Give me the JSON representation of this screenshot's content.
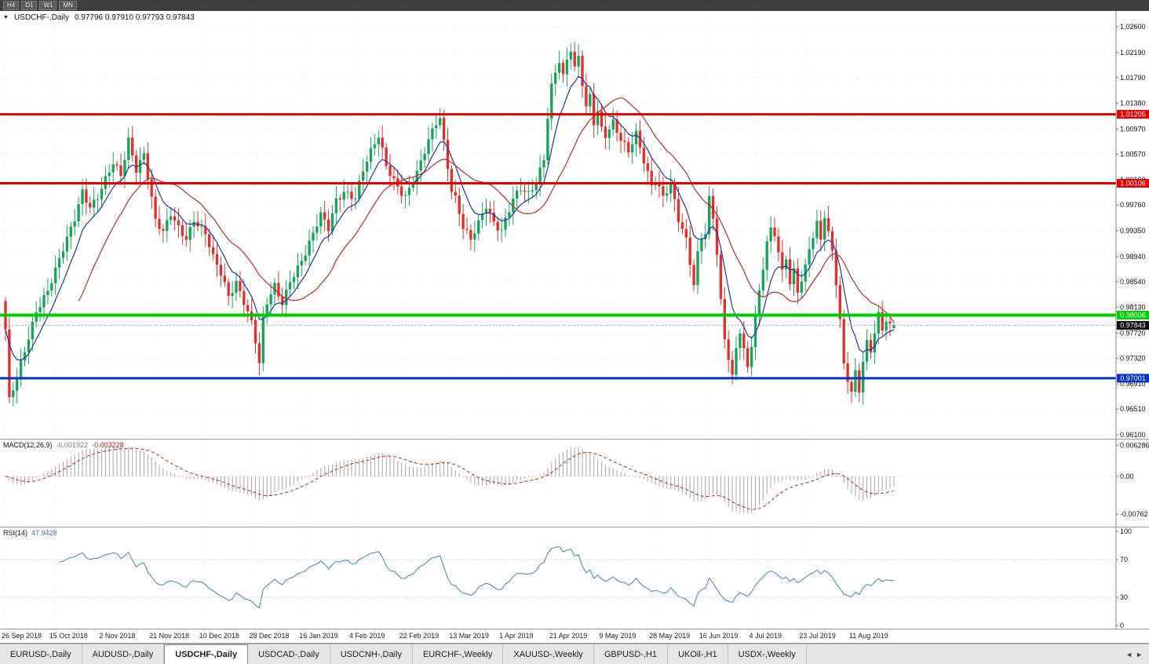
{
  "toolbar": {
    "timeframes": [
      "H4",
      "D1",
      "W1",
      "MN"
    ]
  },
  "chart": {
    "symbol_label": "USDCHF-,Daily",
    "ohlc_text": "0.97796 0.97910 0.97793 0.97843"
  },
  "macd": {
    "name": "MACD(12,26,9)",
    "value_main": "-0.001922",
    "value_signal": "-0.003228",
    "axis_labels": [
      "0.006286",
      "0.00",
      "-0.00762"
    ],
    "axis_values": [
      0.006286,
      0,
      -0.00762
    ]
  },
  "rsi": {
    "name": "RSI(14)",
    "value": "47.9428",
    "axis_labels": [
      "100",
      "70",
      "30",
      "0"
    ],
    "axis_values": [
      100,
      70,
      30,
      0
    ],
    "levels": [
      70,
      30
    ]
  },
  "colors": {
    "up": "#1aa35c",
    "down": "#dd3330",
    "ma_fast": "#23369e",
    "ma_slow": "#b1312f",
    "macd_hist": "#a6a6a6",
    "macd_signal": "#b22222",
    "rsi_line": "#4a7ebb",
    "grid": "#ebebeb",
    "axis": "#808080"
  },
  "chart_data": {
    "type": "candlestick",
    "title": "USDCHF-,Daily",
    "symbol": "USDCHF",
    "timeframe": "Daily",
    "ylim": [
      0.961,
      1.026
    ],
    "price_axis_ticks": [
      1.026,
      1.0219,
      1.0179,
      1.0138,
      1.0097,
      1.0057,
      1.0016,
      0.9976,
      0.9935,
      0.9894,
      0.9854,
      0.9813,
      0.9772,
      0.9732,
      0.9691,
      0.9651,
      0.961
    ],
    "x_tick_labels": [
      "26 Sep 2018",
      "15 Oct 2018",
      "2 Nov 2018",
      "21 Nov 2018",
      "10 Dec 2018",
      "28 Dec 2018",
      "16 Jan 2019",
      "4 Feb 2019",
      "22 Feb 2019",
      "13 Mar 2019",
      "1 Apr 2019",
      "21 Apr 2019",
      "9 May 2019",
      "28 May 2019",
      "16 Jun 2019",
      "4 Jul 2019",
      "23 Jul 2019",
      "11 Aug 2019"
    ],
    "candles_per_tick": 13,
    "candle_count": 232,
    "current_price": 0.97843,
    "current_price_label": "0.97843",
    "last_candle": {
      "open": 0.97796,
      "high": 0.9791,
      "low": 0.97793,
      "close": 0.97843
    },
    "price_waypoints": [
      [
        0,
        0.9775
      ],
      [
        1,
        0.9662
      ],
      [
        3,
        0.97
      ],
      [
        5,
        0.9745
      ],
      [
        8,
        0.981
      ],
      [
        11,
        0.984
      ],
      [
        13,
        0.987
      ],
      [
        16,
        0.992
      ],
      [
        18,
        0.9955
      ],
      [
        20,
        1.0
      ],
      [
        22,
        0.9975
      ],
      [
        24,
        0.999
      ],
      [
        26,
        1.0015
      ],
      [
        28,
        1.004
      ],
      [
        30,
        1.0022
      ],
      [
        32,
        1.008
      ],
      [
        34,
        1.0035
      ],
      [
        36,
        1.006
      ],
      [
        39,
        0.995
      ],
      [
        41,
        0.993
      ],
      [
        43,
        0.996
      ],
      [
        45,
        0.994
      ],
      [
        47,
        0.9925
      ],
      [
        49,
        0.9955
      ],
      [
        52,
        0.993
      ],
      [
        54,
        0.989
      ],
      [
        56,
        0.9865
      ],
      [
        58,
        0.983
      ],
      [
        60,
        0.9855
      ],
      [
        62,
        0.9825
      ],
      [
        64,
        0.979
      ],
      [
        65,
        0.976
      ],
      [
        66,
        0.9722
      ],
      [
        67,
        0.979
      ],
      [
        68,
        0.9818
      ],
      [
        70,
        0.9845
      ],
      [
        72,
        0.982
      ],
      [
        74,
        0.9858
      ],
      [
        76,
        0.9878
      ],
      [
        78,
        0.99
      ],
      [
        80,
        0.9928
      ],
      [
        82,
        0.9958
      ],
      [
        84,
        0.9938
      ],
      [
        86,
        0.9985
      ],
      [
        88,
        1.0
      ],
      [
        91,
        0.9988
      ],
      [
        93,
        1.003
      ],
      [
        95,
        1.0058
      ],
      [
        97,
        1.0085
      ],
      [
        99,
        1.004
      ],
      [
        101,
        1.0018
      ],
      [
        103,
        0.9998
      ],
      [
        104,
        0.999
      ],
      [
        106,
        1.0012
      ],
      [
        108,
        1.004
      ],
      [
        110,
        1.0078
      ],
      [
        112,
        1.0108
      ],
      [
        113,
        1.0118
      ],
      [
        114,
        1.0078
      ],
      [
        115,
        1.004
      ],
      [
        116,
        1.0002
      ],
      [
        117,
        0.9988
      ],
      [
        119,
        0.994
      ],
      [
        121,
        0.9918
      ],
      [
        123,
        0.9945
      ],
      [
        125,
        0.9975
      ],
      [
        127,
        0.995
      ],
      [
        129,
        0.9938
      ],
      [
        130,
        0.9955
      ],
      [
        132,
        0.9985
      ],
      [
        134,
        1.0
      ],
      [
        136,
        0.999
      ],
      [
        138,
        1.0012
      ],
      [
        140,
        1.0052
      ],
      [
        141,
        1.012
      ],
      [
        142,
        1.0168
      ],
      [
        143,
        1.019
      ],
      [
        144,
        1.0208
      ],
      [
        145,
        1.018
      ],
      [
        146,
        1.0205
      ],
      [
        147,
        1.0222
      ],
      [
        148,
        1.019
      ],
      [
        149,
        1.0208
      ],
      [
        150,
        1.0168
      ],
      [
        151,
        1.013
      ],
      [
        152,
        1.015
      ],
      [
        153,
        1.011
      ],
      [
        154,
        1.0128
      ],
      [
        155,
        1.01
      ],
      [
        156,
        1.009
      ],
      [
        158,
        1.0108
      ],
      [
        160,
        1.0078
      ],
      [
        162,
        1.0058
      ],
      [
        164,
        1.0088
      ],
      [
        166,
        1.0048
      ],
      [
        168,
        1.001
      ],
      [
        169,
        1.002
      ],
      [
        171,
        0.999
      ],
      [
        173,
        1.0008
      ],
      [
        175,
        0.995
      ],
      [
        177,
        0.9918
      ],
      [
        179,
        0.985
      ],
      [
        180,
        0.99
      ],
      [
        181,
        0.9928
      ],
      [
        182,
        0.9935
      ],
      [
        183,
        0.9988
      ],
      [
        184,
        0.9958
      ],
      [
        185,
        0.99
      ],
      [
        186,
        0.982
      ],
      [
        187,
        0.976
      ],
      [
        188,
        0.973
      ],
      [
        189,
        0.9698
      ],
      [
        190,
        0.9745
      ],
      [
        191,
        0.9775
      ],
      [
        192,
        0.9745
      ],
      [
        193,
        0.9718
      ],
      [
        194,
        0.9758
      ],
      [
        195,
        0.98
      ],
      [
        196,
        0.984
      ],
      [
        197,
        0.988
      ],
      [
        198,
        0.9918
      ],
      [
        199,
        0.9935
      ],
      [
        200,
        0.9928
      ],
      [
        201,
        0.9898
      ],
      [
        202,
        0.9865
      ],
      [
        203,
        0.989
      ],
      [
        204,
        0.985
      ],
      [
        205,
        0.987
      ],
      [
        206,
        0.984
      ],
      [
        207,
        0.986
      ],
      [
        208,
        0.988
      ],
      [
        209,
        0.991
      ],
      [
        210,
        0.993
      ],
      [
        211,
        0.9948
      ],
      [
        212,
        0.992
      ],
      [
        213,
        0.9958
      ],
      [
        214,
        0.9928
      ],
      [
        215,
        0.9898
      ],
      [
        216,
        0.985
      ],
      [
        217,
        0.979
      ],
      [
        218,
        0.972
      ],
      [
        219,
        0.97
      ],
      [
        220,
        0.968
      ],
      [
        221,
        0.9712
      ],
      [
        222,
        0.9685
      ],
      [
        223,
        0.973
      ],
      [
        224,
        0.9758
      ],
      [
        225,
        0.9745
      ],
      [
        226,
        0.9772
      ],
      [
        227,
        0.9798
      ],
      [
        228,
        0.9775
      ],
      [
        229,
        0.979
      ],
      [
        230,
        0.97796
      ],
      [
        231,
        0.97843
      ]
    ],
    "overlays": {
      "hlines": [
        {
          "value": 1.01205,
          "label": "1.01205",
          "color": "#e60000",
          "width": 3
        },
        {
          "value": 1.00106,
          "label": "1.00106",
          "color": "#e60000",
          "width": 3
        },
        {
          "value": 0.98006,
          "label": "0.98006",
          "color": "#00cc00",
          "width": 4
        },
        {
          "value": 0.97001,
          "label": "0.97001",
          "color": "#0033cc",
          "width": 3
        }
      ],
      "ma_fast": {
        "type": "EMA",
        "period": 8
      },
      "ma_slow": {
        "type": "SMA",
        "period": 20
      }
    },
    "indicators": {
      "macd": {
        "fast": 12,
        "slow": 26,
        "signal": 9,
        "value_main": -0.001922,
        "value_signal": -0.003228,
        "axis_range": [
          -0.00762,
          0.006286
        ]
      },
      "rsi": {
        "period": 14,
        "value": 47.9428,
        "axis_range": [
          0,
          100
        ],
        "levels": [
          70,
          30
        ]
      }
    }
  },
  "tabs": {
    "items": [
      "EURUSD-,Daily",
      "AUDUSD-,Daily",
      "USDCHF-,Daily",
      "USDCAD-,Daily",
      "USDCNH-,Daily",
      "EURCHF-,Weekly",
      "XAUUSD-,Weekly",
      "GBPUSD-,H1",
      "UKOil-,H1",
      "USDX-,Weekly"
    ],
    "active_index": 2,
    "scroll_left": "◄",
    "scroll_right": "►"
  }
}
